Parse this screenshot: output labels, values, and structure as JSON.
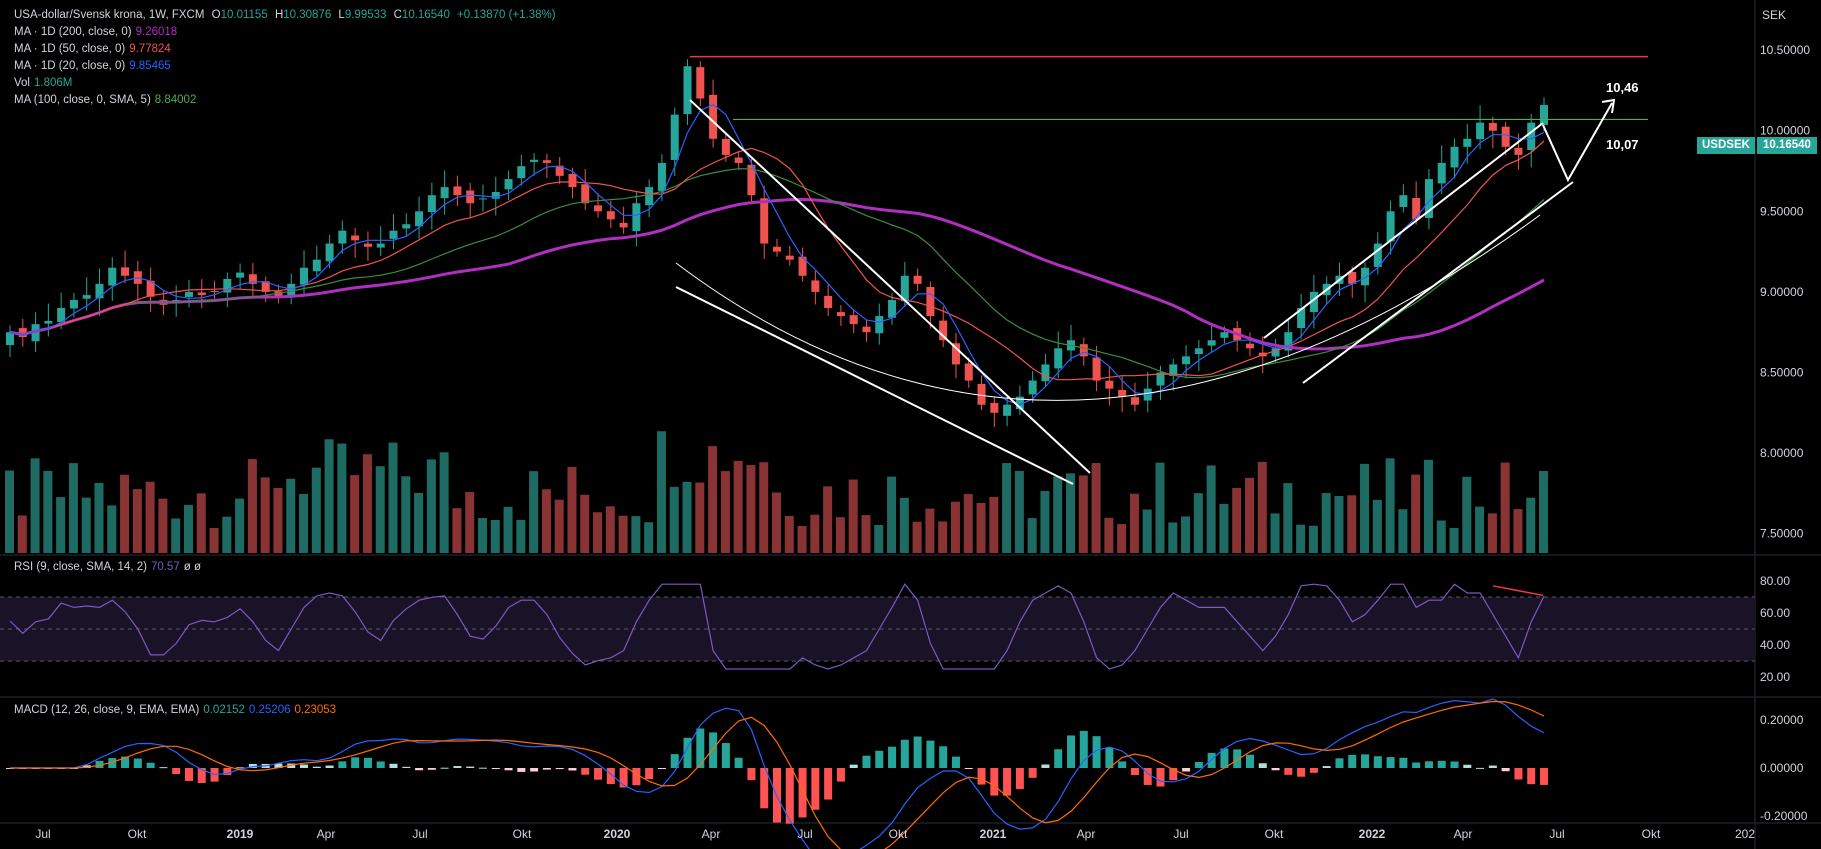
{
  "header": {
    "symbol": "USA-dollar/Svensk krona, 1W, FXCM",
    "o_label": "O",
    "o": "10.01155",
    "h_label": "H",
    "h": "10.30876",
    "l_label": "L",
    "l": "9.99533",
    "c_label": "C",
    "c": "10.16540",
    "change": "+0.13870 (+1.38%)"
  },
  "indicators": [
    {
      "label": "MA · 1D (200, close, 0)",
      "value": "9.26018",
      "color": "#9c27b0"
    },
    {
      "label": "MA · 1D (50, close, 0)",
      "value": "9.77824",
      "color": "#ef5350"
    },
    {
      "label": "MA · 1D (20, close, 0)",
      "value": "9.85465",
      "color": "#2962ff"
    },
    {
      "label": "Vol",
      "value": "1.806M",
      "color": "#26a69a"
    },
    {
      "label": "MA (100, close, 0, SMA, 5)",
      "value": "8.84002",
      "color": "#4caf50"
    }
  ],
  "rsi_legend": {
    "label": "RSI (9, close, SMA, 14, 2)",
    "value": "70.57",
    "extra": "ø ø",
    "color": "#7e57c2"
  },
  "macd_legend": {
    "label": "MACD (12, 26, close, 9, EMA, EMA)",
    "hist": "0.02152",
    "macd": "0.25206",
    "signal": "0.23053",
    "hist_color": "#26a69a",
    "macd_color": "#2962ff",
    "signal_color": "#ff6d00"
  },
  "price_axis": {
    "unit": "SEK",
    "ticks": [
      "10.50000",
      "10.00000",
      "9.50000",
      "9.00000",
      "8.50000",
      "8.00000",
      "7.50000"
    ]
  },
  "rsi_axis": {
    "ticks": [
      "80.00",
      "60.00",
      "40.00",
      "20.00"
    ]
  },
  "macd_axis": {
    "ticks": [
      "0.20000",
      "0.00000",
      "-0.20000"
    ]
  },
  "time_axis": {
    "labels": [
      "Jul",
      "Okt",
      "2019",
      "Apr",
      "Jul",
      "Okt",
      "2020",
      "Apr",
      "Jul",
      "Okt",
      "2021",
      "Apr",
      "Jul",
      "Okt",
      "2022",
      "Apr",
      "Jul",
      "Okt",
      "202"
    ]
  },
  "last_price": {
    "symbol": "USDSEK",
    "value": "10.16540"
  },
  "annotations": {
    "level_high": "10,46",
    "level_mid": "10,07"
  },
  "colors": {
    "up": "#26a69a",
    "down": "#ef5350",
    "vol_up": "#1e6b63",
    "vol_down": "#8a3335",
    "resistance": "#f23645",
    "support": "#4caf50",
    "ma200d": "#b02fc0",
    "ma100": "#388e3c"
  },
  "chart_data": {
    "type": "candlestick",
    "title": "USA-dollar/Svensk krona, 1W, FXCM",
    "ylim": [
      7.38,
      10.78
    ],
    "ohlc_close_approx": [
      8.75,
      8.72,
      8.8,
      8.82,
      8.9,
      8.95,
      8.98,
      9.05,
      9.15,
      9.1,
      9.05,
      8.97,
      8.92,
      8.95,
      9.0,
      8.98,
      9.0,
      9.08,
      9.12,
      9.05,
      9.0,
      8.97,
      9.05,
      9.15,
      9.2,
      9.3,
      9.38,
      9.32,
      9.28,
      9.3,
      9.38,
      9.42,
      9.5,
      9.6,
      9.65,
      9.6,
      9.55,
      9.58,
      9.62,
      9.7,
      9.78,
      9.82,
      9.8,
      9.72,
      9.65,
      9.55,
      9.5,
      9.45,
      9.4,
      9.55,
      9.65,
      9.8,
      10.1,
      10.4,
      10.2,
      9.95,
      9.85,
      9.8,
      9.6,
      9.3,
      9.25,
      9.2,
      9.1,
      9.0,
      8.9,
      8.85,
      8.8,
      8.75,
      8.85,
      8.95,
      9.1,
      9.05,
      8.85,
      8.7,
      8.55,
      8.45,
      8.3,
      8.25,
      8.3,
      8.35,
      8.45,
      8.55,
      8.65,
      8.7,
      8.6,
      8.45,
      8.4,
      8.35,
      8.3,
      8.4,
      8.5,
      8.55,
      8.6,
      8.65,
      8.7,
      8.75,
      8.7,
      8.65,
      8.6,
      8.65,
      8.75,
      8.9,
      9.0,
      9.05,
      9.1,
      9.05,
      9.15,
      9.3,
      9.5,
      9.6,
      9.45,
      9.7,
      9.8,
      9.9,
      9.95,
      10.05,
      10.0,
      9.9,
      9.85,
      10.05,
      10.16
    ],
    "resistance_level": 10.46,
    "support_level": 10.07,
    "rsi_levels": [
      70,
      50,
      30
    ],
    "rsi_last": 70.57,
    "macd_last": {
      "hist": 0.02152,
      "macd": 0.25206,
      "signal": 0.23053
    }
  }
}
